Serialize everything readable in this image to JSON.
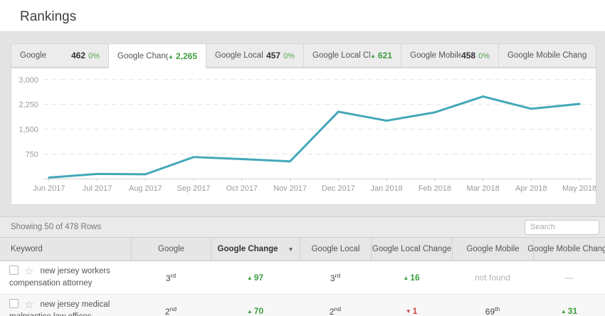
{
  "page": {
    "title": "Rankings"
  },
  "icons": {
    "arrow_up": "▲",
    "arrow_down": "▼",
    "sort_down_caret": "▼",
    "star_outline": "☆",
    "dash": "—"
  },
  "colors": {
    "line_teal": "#42a8b8",
    "positive_green": "#3f9e3f",
    "negative_red": "#cc4444"
  },
  "tabs": [
    {
      "label": "Google",
      "value": "462",
      "pct": "0%",
      "active": false
    },
    {
      "label": "Google Change",
      "delta_dir": "up",
      "value": "2,265",
      "active": true
    },
    {
      "label": "Google Local",
      "value": "457",
      "pct": "0%",
      "active": false
    },
    {
      "label": "Google Local Change",
      "delta_dir": "up",
      "value": "621",
      "active": false
    },
    {
      "label": "Google Mobile",
      "value": "458",
      "pct": "0%",
      "active": false
    },
    {
      "label": "Google Mobile Change",
      "active": false
    }
  ],
  "chart_data": {
    "type": "line",
    "series_name": "Google Change",
    "categories": [
      "Jun 2017",
      "Jul 2017",
      "Aug 2017",
      "Sep 2017",
      "Oct 2017",
      "Nov 2017",
      "Dec 2017",
      "Jan 2018",
      "Feb 2018",
      "Mar 2018",
      "Apr 2018",
      "May 2018"
    ],
    "values": [
      40,
      150,
      140,
      660,
      600,
      530,
      2030,
      1760,
      2010,
      2490,
      2120,
      2265
    ],
    "ylim": [
      0,
      3000
    ],
    "yticks": [
      {
        "value": 750,
        "label": "750"
      },
      {
        "value": 1500,
        "label": "1,500"
      },
      {
        "value": 2250,
        "label": "2,250"
      },
      {
        "value": 3000,
        "label": "3,000"
      }
    ],
    "grid": "horizontal-dashed",
    "legend": "none",
    "line_color": "#42a8b8"
  },
  "toolbar": {
    "showing": "Showing 50 of 478 Rows",
    "search_placeholder": "Search"
  },
  "table": {
    "columns": [
      "Keyword",
      "Google",
      "Google Change",
      "Google Local",
      "Google Local Change",
      "Google Mobile",
      "Google Mobile Change"
    ],
    "sorted_column": "Google Change",
    "rows": [
      {
        "keyword": "new jersey workers compensation attorney",
        "google": {
          "num": "3",
          "suffix": "rd"
        },
        "google_change": {
          "dir": "up",
          "value": "97"
        },
        "google_local": {
          "num": "3",
          "suffix": "rd"
        },
        "google_local_change": {
          "dir": "up",
          "value": "16"
        },
        "google_mobile": {
          "text": "not found"
        },
        "google_mobile_change": {
          "text": "—"
        }
      },
      {
        "keyword": "new jersey medical malpractice law offices",
        "google": {
          "num": "2",
          "suffix": "nd"
        },
        "google_change": {
          "dir": "up",
          "value": "70"
        },
        "google_local": {
          "num": "2",
          "suffix": "nd"
        },
        "google_local_change": {
          "dir": "down",
          "value": "1"
        },
        "google_mobile": {
          "num": "69",
          "suffix": "th"
        },
        "google_mobile_change": {
          "dir": "up",
          "value": "31"
        }
      }
    ]
  }
}
